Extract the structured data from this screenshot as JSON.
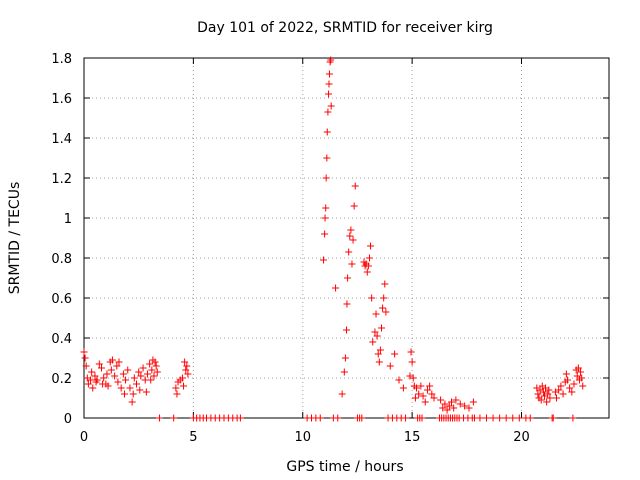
{
  "chart_data": {
    "type": "scatter",
    "title": "Day 101 of 2022, SRMTID for receiver kirg",
    "xlabel": "GPS time / hours",
    "ylabel": "SRMTID / TECUs",
    "xlim": [
      0,
      24
    ],
    "ylim": [
      0,
      1.8
    ],
    "xticks": [
      0,
      5,
      10,
      15,
      20
    ],
    "yticks": [
      0,
      0.2,
      0.4,
      0.6,
      0.8,
      1,
      1.2,
      1.4,
      1.6,
      1.8
    ],
    "grid": true,
    "marker": "+",
    "color": "#ff0000",
    "series": [
      {
        "name": "SRMTID",
        "x": [
          0.0,
          0.05,
          0.1,
          0.15,
          0.2,
          0.3,
          0.35,
          0.4,
          0.5,
          0.55,
          0.6,
          0.7,
          0.8,
          0.85,
          0.9,
          1.0,
          1.05,
          1.1,
          1.2,
          1.25,
          1.3,
          1.4,
          1.5,
          1.55,
          1.6,
          1.7,
          1.8,
          1.85,
          1.9,
          2.0,
          2.1,
          2.2,
          2.25,
          2.3,
          2.4,
          2.5,
          2.55,
          2.6,
          2.7,
          2.8,
          2.85,
          2.9,
          3.0,
          3.05,
          3.1,
          3.15,
          3.2,
          3.25,
          3.3,
          3.35,
          3.45,
          4.1,
          4.2,
          4.25,
          4.3,
          4.4,
          4.5,
          4.55,
          4.6,
          4.65,
          4.7,
          4.75,
          5.0,
          5.15,
          5.3,
          5.45,
          5.6,
          5.8,
          6.0,
          6.2,
          6.4,
          6.6,
          6.8,
          7.0,
          7.15,
          10.2,
          10.4,
          10.6,
          10.8,
          10.95,
          11.0,
          11.02,
          11.05,
          11.07,
          11.1,
          11.12,
          11.15,
          11.18,
          11.2,
          11.22,
          11.25,
          11.28,
          11.3,
          11.5,
          11.8,
          11.9,
          11.95,
          12.0,
          12.02,
          12.05,
          12.1,
          12.15,
          12.2,
          12.25,
          12.3,
          12.35,
          12.4,
          12.8,
          12.85,
          12.9,
          12.95,
          13.0,
          13.05,
          13.1,
          13.15,
          13.2,
          13.3,
          13.35,
          13.4,
          13.45,
          13.5,
          13.55,
          13.6,
          13.65,
          13.7,
          13.75,
          13.8,
          14.0,
          14.2,
          14.4,
          14.6,
          14.9,
          14.95,
          15.0,
          15.05,
          15.1,
          15.15,
          15.2,
          15.3,
          15.4,
          15.5,
          15.6,
          15.7,
          15.8,
          15.9,
          16.0,
          11.4,
          11.6,
          12.5,
          12.6,
          12.7,
          13.9,
          14.1,
          14.3,
          14.5,
          14.7,
          15.25,
          15.35,
          15.45,
          16.3,
          16.4,
          16.5,
          16.6,
          16.7,
          16.8,
          16.9,
          17.0,
          17.2,
          17.4,
          17.6,
          17.8,
          16.25,
          16.35,
          16.45,
          16.55,
          16.65,
          16.75,
          16.85,
          16.95,
          17.05,
          17.15,
          17.35,
          17.55,
          17.75,
          17.85,
          18.1,
          18.4,
          18.7,
          19.0,
          19.3,
          19.6,
          19.9,
          20.2,
          20.4,
          20.7,
          20.75,
          20.8,
          20.85,
          20.9,
          20.95,
          21.0,
          21.05,
          21.1,
          21.15,
          21.2,
          21.25,
          21.3,
          21.55,
          21.6,
          21.7,
          21.8,
          21.9,
          22.0,
          22.05,
          22.1,
          22.2,
          22.3,
          22.4,
          22.5,
          22.55,
          22.6,
          22.65,
          22.7,
          22.75,
          22.8,
          21.4,
          21.45,
          22.35
        ],
        "y": [
          0.33,
          0.3,
          0.26,
          0.2,
          0.17,
          0.19,
          0.23,
          0.15,
          0.21,
          0.18,
          0.19,
          0.27,
          0.25,
          0.17,
          0.2,
          0.17,
          0.22,
          0.16,
          0.28,
          0.24,
          0.29,
          0.21,
          0.26,
          0.18,
          0.28,
          0.15,
          0.22,
          0.12,
          0.19,
          0.24,
          0.15,
          0.08,
          0.12,
          0.2,
          0.17,
          0.23,
          0.14,
          0.21,
          0.25,
          0.19,
          0.13,
          0.22,
          0.27,
          0.19,
          0.24,
          0.29,
          0.21,
          0.28,
          0.26,
          0.23,
          0.0,
          0.0,
          0.15,
          0.12,
          0.18,
          0.19,
          0.2,
          0.16,
          0.28,
          0.24,
          0.26,
          0.22,
          0.0,
          0.0,
          0.0,
          0.0,
          0.0,
          0.0,
          0.0,
          0.0,
          0.0,
          0.0,
          0.0,
          0.0,
          0.0,
          0.0,
          0.0,
          0.0,
          0.0,
          0.79,
          0.92,
          1.0,
          1.05,
          1.2,
          1.3,
          1.43,
          1.53,
          1.62,
          1.67,
          1.72,
          1.78,
          1.79,
          1.56,
          0.65,
          0.12,
          0.23,
          0.3,
          0.44,
          0.57,
          0.7,
          0.83,
          0.91,
          0.94,
          0.77,
          0.89,
          1.06,
          1.16,
          0.78,
          0.76,
          0.77,
          0.73,
          0.76,
          0.8,
          0.86,
          0.6,
          0.38,
          0.43,
          0.52,
          0.41,
          0.32,
          0.28,
          0.34,
          0.45,
          0.55,
          0.6,
          0.67,
          0.53,
          0.26,
          0.32,
          0.19,
          0.15,
          0.21,
          0.33,
          0.28,
          0.2,
          0.16,
          0.1,
          0.15,
          0.12,
          0.16,
          0.11,
          0.08,
          0.14,
          0.16,
          0.12,
          0.1,
          0.0,
          0.0,
          0.0,
          0.0,
          0.0,
          0.0,
          0.0,
          0.0,
          0.0,
          0.0,
          0.0,
          0.0,
          0.0,
          0.09,
          0.05,
          0.07,
          0.04,
          0.06,
          0.08,
          0.05,
          0.09,
          0.07,
          0.06,
          0.05,
          0.08,
          0.0,
          0.0,
          0.0,
          0.0,
          0.0,
          0.0,
          0.0,
          0.0,
          0.0,
          0.0,
          0.0,
          0.0,
          0.0,
          0.0,
          0.0,
          0.0,
          0.0,
          0.0,
          0.0,
          0.0,
          0.0,
          0.0,
          0.0,
          0.15,
          0.12,
          0.1,
          0.14,
          0.09,
          0.16,
          0.13,
          0.11,
          0.15,
          0.08,
          0.12,
          0.14,
          0.1,
          0.13,
          0.1,
          0.14,
          0.16,
          0.12,
          0.18,
          0.22,
          0.19,
          0.15,
          0.13,
          0.17,
          0.24,
          0.21,
          0.25,
          0.19,
          0.23,
          0.2,
          0.16,
          0.0,
          0.0,
          0.0
        ]
      }
    ]
  }
}
